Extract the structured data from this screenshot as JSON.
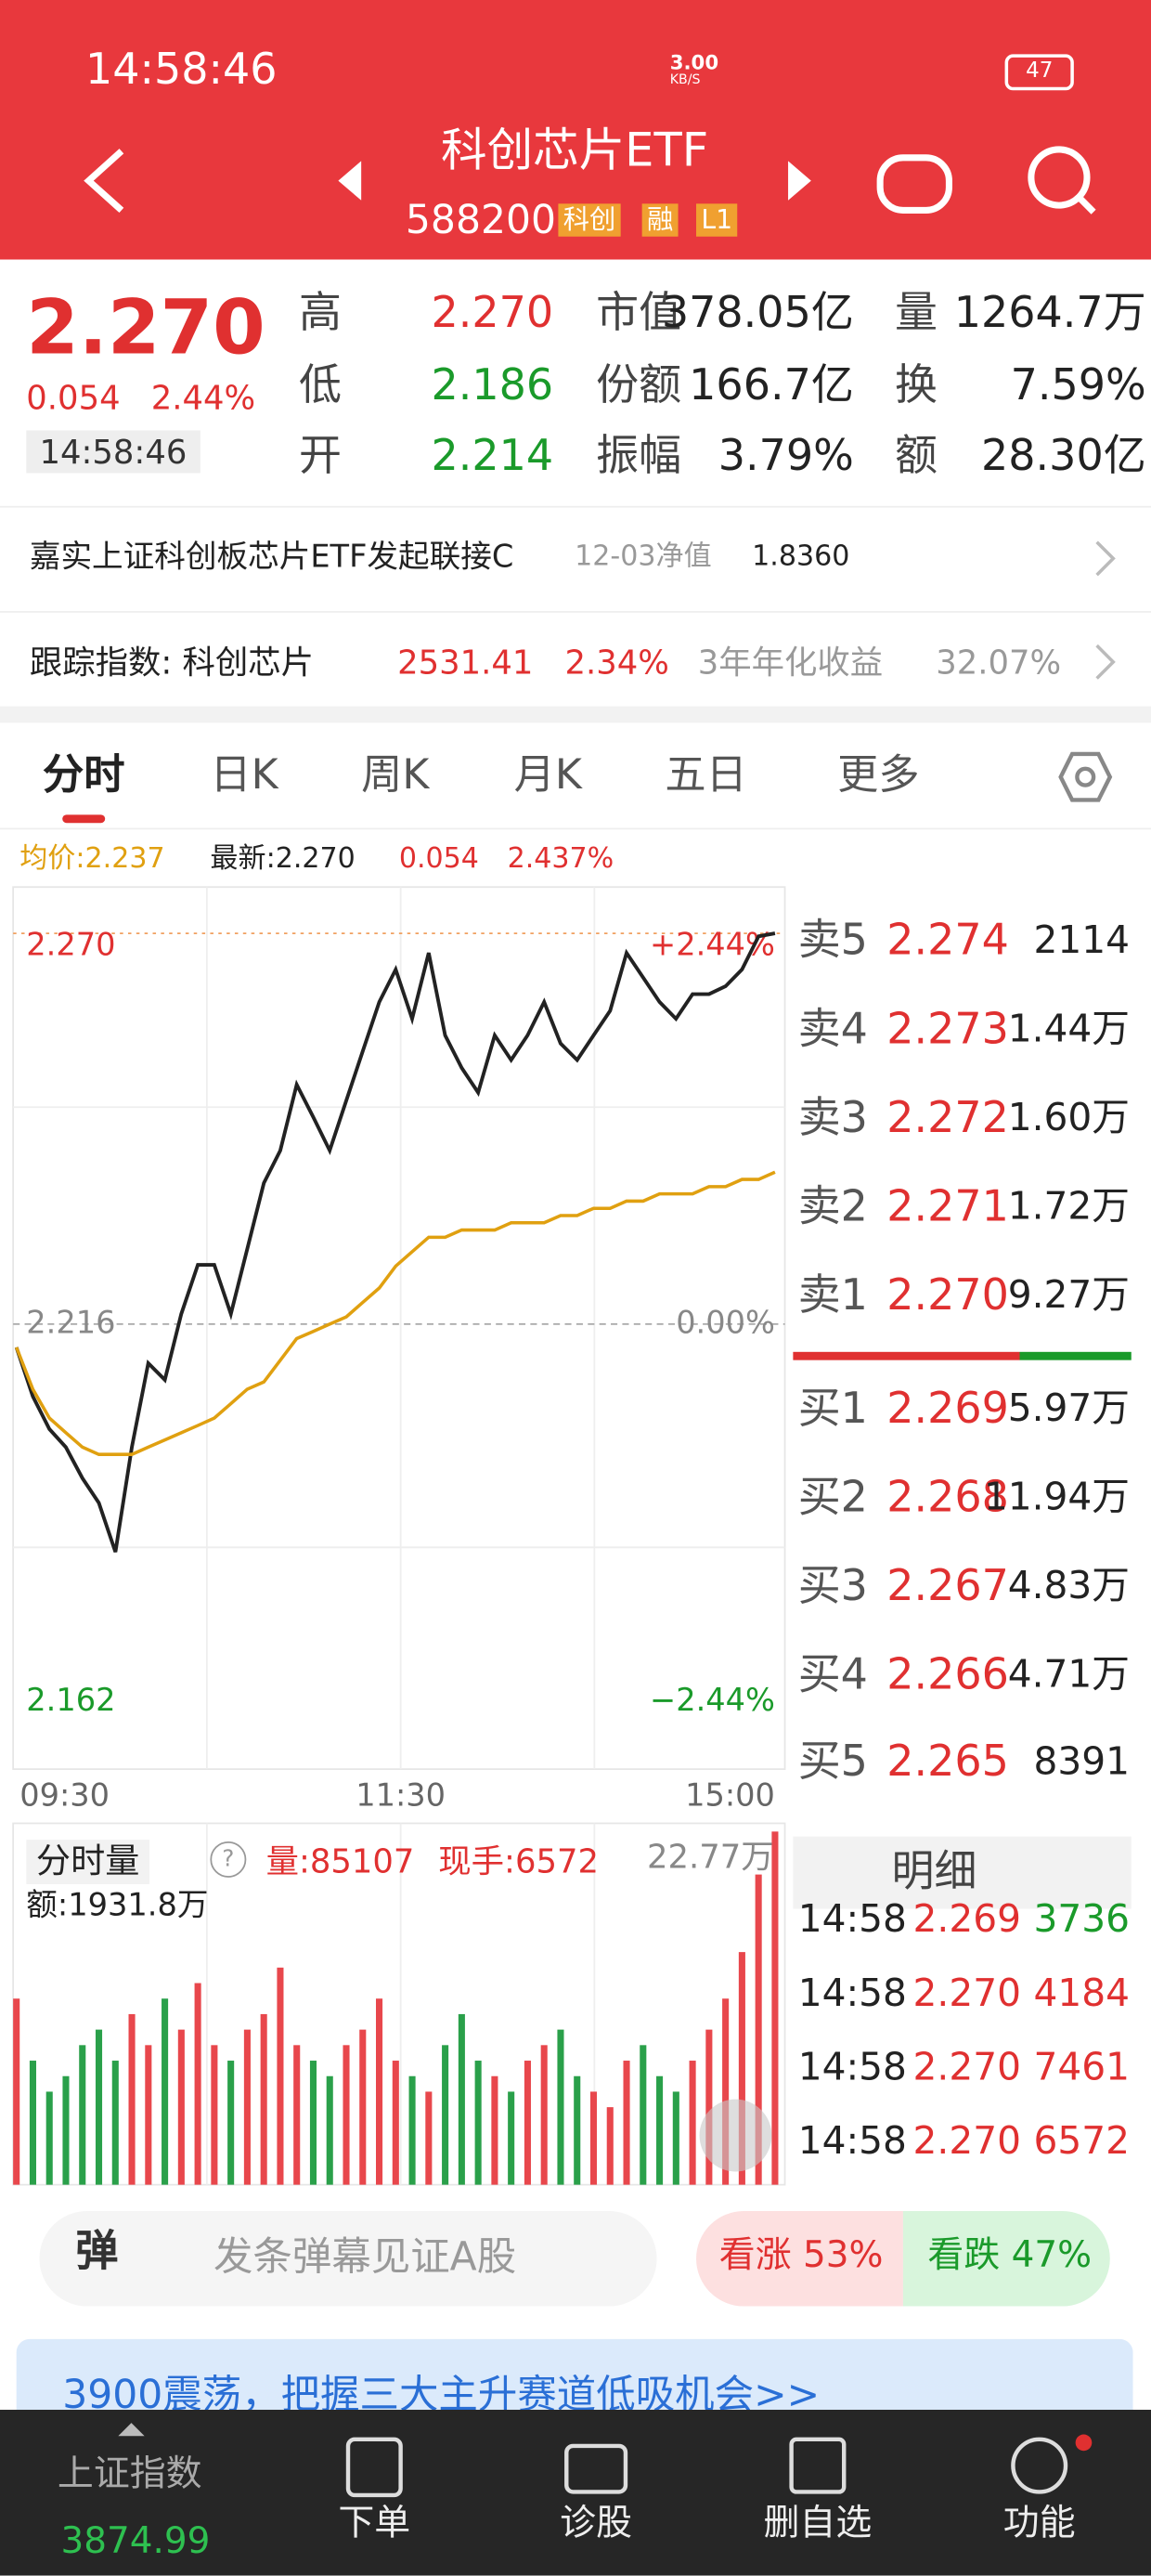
{
  "status_bar": {
    "time": "14:58:46",
    "net_speed": "3.00",
    "net_unit": "KB/S",
    "battery": "47"
  },
  "header": {
    "title": "科创芯片ETF",
    "code": "588200",
    "tags": [
      "科创",
      "融",
      "L1"
    ]
  },
  "quote": {
    "price": "2.270",
    "change": "0.054",
    "change_pct": "2.44%",
    "time": "14:58:46",
    "stats": [
      {
        "label": "高",
        "value": "2.270",
        "color": "#e03030"
      },
      {
        "label": "低",
        "value": "2.186",
        "color": "#1a9a2a"
      },
      {
        "label": "开",
        "value": "2.214",
        "color": "#1a9a2a"
      },
      {
        "label": "市值",
        "value": "378.05亿",
        "color": "#222222"
      },
      {
        "label": "份额",
        "value": "166.7亿",
        "color": "#222222"
      },
      {
        "label": "振幅",
        "value": "3.79%",
        "color": "#222222"
      },
      {
        "label": "量",
        "value": "1264.7万",
        "color": "#222222"
      },
      {
        "label": "换",
        "value": "7.59%",
        "color": "#222222"
      },
      {
        "label": "额",
        "value": "28.30亿",
        "color": "#222222"
      }
    ]
  },
  "fund_row": {
    "name": "嘉实上证科创板芯片ETF发起联接C",
    "date": "12-03净值",
    "nav": "1.8360"
  },
  "index_row": {
    "label": "跟踪指数: 科创芯片",
    "value": "2531.41",
    "change": "2.34%",
    "annual_label": "3年年化收益",
    "annual_value": "32.07%"
  },
  "tabs": [
    "分时",
    "日K",
    "周K",
    "月K",
    "五日",
    "更多"
  ],
  "intraday": {
    "type": "line",
    "info": {
      "avg": "均价:2.237",
      "latest": "最新:2.270",
      "change": "0.054",
      "change_pct": "2.437%"
    },
    "ylim": [
      2.1545,
      2.2764
    ],
    "yticks": [
      {
        "value": 2.27,
        "label": "2.270"
      },
      {
        "value": 2.216,
        "label": "2.216"
      },
      {
        "value": 2.162,
        "label": "2.162"
      }
    ],
    "pct_labels": [
      "+2.44%",
      "0.00%",
      "−2.44%"
    ],
    "xticks": [
      "09:30",
      "11:30",
      "15:00"
    ],
    "series": [
      {
        "color": "#222222",
        "values": [
          2.2128,
          2.206,
          2.2015,
          2.199,
          2.1947,
          2.1913,
          2.1845,
          2.199,
          2.2106,
          2.2083,
          2.2174,
          2.2242,
          2.2242,
          2.2174,
          2.2264,
          2.2355,
          2.24,
          2.2491,
          2.2446,
          2.24,
          2.2469,
          2.2537,
          2.2605,
          2.265,
          2.2582,
          2.2673,
          2.2559,
          2.2514,
          2.248,
          2.2559,
          2.2525,
          2.2559,
          2.2605,
          2.2548,
          2.2525,
          2.2559,
          2.2593,
          2.2673,
          2.2639,
          2.2605,
          2.2582,
          2.2616,
          2.2616,
          2.2627,
          2.265,
          2.2696,
          2.27
        ]
      },
      {
        "color": "#e0a010",
        "values": [
          2.2128,
          2.207,
          2.203,
          2.201,
          2.199,
          2.198,
          2.198,
          2.198,
          2.199,
          2.2,
          2.201,
          2.202,
          2.203,
          2.205,
          2.207,
          2.208,
          2.211,
          2.214,
          2.215,
          2.216,
          2.217,
          2.219,
          2.221,
          2.224,
          2.226,
          2.228,
          2.228,
          2.229,
          2.229,
          2.229,
          2.23,
          2.23,
          2.23,
          2.231,
          2.231,
          2.232,
          2.232,
          2.233,
          2.233,
          2.234,
          2.234,
          2.234,
          2.235,
          2.235,
          2.236,
          2.236,
          2.237
        ]
      }
    ]
  },
  "volume": {
    "type": "bar",
    "title": "分时量",
    "volume": "量:85107",
    "current": "现手:6572",
    "amount": "额:1931.8万",
    "max_label": "22.77万",
    "ylim": [
      0,
      22.77
    ],
    "up_color": "#e8474c",
    "down_color": "#2aa04a",
    "values": [
      12,
      8,
      6,
      7,
      9,
      10,
      8,
      11,
      9,
      12,
      10,
      13,
      9,
      8,
      10,
      11,
      14,
      9,
      8,
      7,
      9,
      10,
      12,
      8,
      7,
      6,
      9,
      11,
      8,
      7,
      6,
      8,
      9,
      10,
      7,
      6,
      5,
      8,
      9,
      7,
      6,
      8,
      10,
      12,
      15,
      20,
      22.77
    ]
  },
  "order_book": {
    "sells": [
      {
        "label": "卖5",
        "price": "2.274",
        "volume": "2114"
      },
      {
        "label": "卖4",
        "price": "2.273",
        "volume": "1.44万"
      },
      {
        "label": "卖3",
        "price": "2.272",
        "volume": "1.60万"
      },
      {
        "label": "卖2",
        "price": "2.271",
        "volume": "1.72万"
      },
      {
        "label": "卖1",
        "price": "2.270",
        "volume": "9.27万"
      }
    ],
    "buys": [
      {
        "label": "买1",
        "price": "2.269",
        "volume": "5.97万"
      },
      {
        "label": "买2",
        "price": "2.268",
        "volume": "11.94万"
      },
      {
        "label": "买3",
        "price": "2.267",
        "volume": "4.83万"
      },
      {
        "label": "买4",
        "price": "2.266",
        "volume": "4.71万"
      },
      {
        "label": "买5",
        "price": "2.265",
        "volume": "8391"
      }
    ]
  },
  "trades": {
    "title": "明细",
    "rows": [
      {
        "time": "14:58",
        "price": "2.269",
        "volume": "3736",
        "color": "#1a9a2a"
      },
      {
        "time": "14:58",
        "price": "2.270",
        "volume": "4184",
        "color": "#e03030"
      },
      {
        "time": "14:58",
        "price": "2.270",
        "volume": "7461",
        "color": "#e03030"
      },
      {
        "time": "14:58",
        "price": "2.270",
        "volume": "6572",
        "color": "#e03030"
      }
    ]
  },
  "danmaku": {
    "icon": "弹",
    "placeholder": "发条弹幕见证A股",
    "up": "看涨 53%",
    "down": "看跌 47%"
  },
  "banner": {
    "text": "3900震荡，把握三大主升赛道低吸机会>>"
  },
  "nav": {
    "index_name": "上证指数",
    "index_value": "3874.99",
    "items": [
      "下单",
      "诊股",
      "删自选",
      "功能"
    ]
  }
}
